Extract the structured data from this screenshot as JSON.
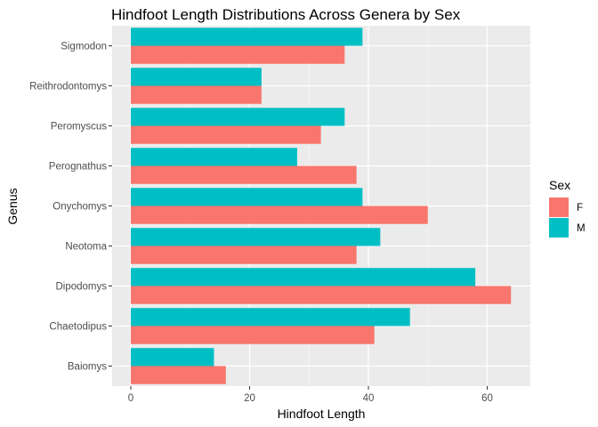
{
  "chart_data": {
    "type": "bar",
    "orientation": "horizontal",
    "title": "Hindfoot Length Distributions Across Genera by Sex",
    "xlabel": "Hindfoot Length",
    "ylabel": "Genus",
    "categories": [
      "Baiomys",
      "Chaetodipus",
      "Dipodomys",
      "Neotoma",
      "Onychomys",
      "Perognathus",
      "Peromyscus",
      "Reithrodontomys",
      "Sigmodon"
    ],
    "series": [
      {
        "name": "F",
        "color": "#F8766D",
        "values": [
          16,
          41,
          64,
          38,
          50,
          38,
          32,
          22,
          36
        ]
      },
      {
        "name": "M",
        "color": "#00BFC4",
        "values": [
          14,
          47,
          58,
          42,
          39,
          28,
          36,
          22,
          39
        ]
      }
    ],
    "xlim": [
      0,
      67
    ],
    "xticks": [
      0,
      20,
      40,
      60
    ],
    "xtick_labels": [
      "0",
      "20",
      "40",
      "60"
    ],
    "grid": true,
    "panel_background": "#EBEBEB",
    "legend": {
      "title": "Sex",
      "position": "right",
      "entries": [
        "F",
        "M"
      ]
    }
  }
}
